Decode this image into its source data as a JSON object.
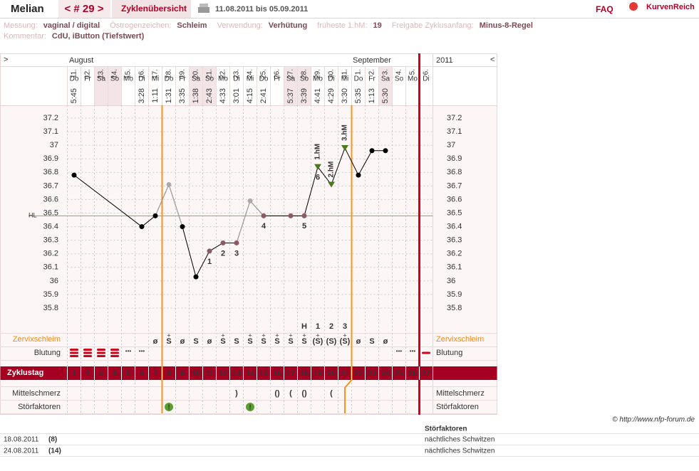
{
  "header": {
    "user": "Melian",
    "cycle": "< # 29 >",
    "tab": "Zyklenübersicht",
    "range": "11.08.2011 bis 05.09.2011",
    "faq": "FAQ",
    "logo": "KurvenReich"
  },
  "info": [
    {
      "label": "Messung:",
      "value": "vaginal / digital"
    },
    {
      "label": "Östrogenzeichen:",
      "value": "Schleim"
    },
    {
      "label": "Verwendung:",
      "value": "Verhütung"
    },
    {
      "label": "früheste 1.hM:",
      "value": "19"
    },
    {
      "label": "Freigabe Zyklusanfang:",
      "value": "Minus-8-Regel"
    }
  ],
  "comment": {
    "label": "Kommentar:",
    "value": "CdU, iButton (Tiefstwert)"
  },
  "calendar": {
    "prev": ">",
    "next": "<",
    "months": [
      "August",
      "September"
    ],
    "year": "2011",
    "days": [
      {
        "date": "11.",
        "weekday": "Do",
        "time": "5:45"
      },
      {
        "date": "12.",
        "weekday": "Fr",
        "time": null
      },
      {
        "date": "13.",
        "weekday": "Sa",
        "time": null
      },
      {
        "date": "14.",
        "weekday": "So",
        "time": null
      },
      {
        "date": "15.",
        "weekday": "Mo",
        "time": null
      },
      {
        "date": "16.",
        "weekday": "Di",
        "time": "3:28"
      },
      {
        "date": "17.",
        "weekday": "Mi",
        "time": "1:11"
      },
      {
        "date": "18.",
        "weekday": "Do",
        "time": "1:31"
      },
      {
        "date": "19.",
        "weekday": "Fr",
        "time": "3:35"
      },
      {
        "date": "20.",
        "weekday": "Sa",
        "time": "1:38"
      },
      {
        "date": "21.",
        "weekday": "So",
        "time": "2:43"
      },
      {
        "date": "22.",
        "weekday": "Mo",
        "time": "4:33"
      },
      {
        "date": "23.",
        "weekday": "Di",
        "time": "3:01"
      },
      {
        "date": "24.",
        "weekday": "Mi",
        "time": "4:15"
      },
      {
        "date": "25.",
        "weekday": "Do",
        "time": "2:41"
      },
      {
        "date": "26.",
        "weekday": "Fr",
        "time": null
      },
      {
        "date": "27.",
        "weekday": "Sa",
        "time": "5:37"
      },
      {
        "date": "28.",
        "weekday": "So",
        "time": "3:39"
      },
      {
        "date": "29.",
        "weekday": "Mo",
        "time": "4:41"
      },
      {
        "date": "30.",
        "weekday": "Di",
        "time": "4:29"
      },
      {
        "date": "31.",
        "weekday": "Mi",
        "time": "3:30"
      },
      {
        "date": "1.",
        "weekday": "Do",
        "time": "5:35"
      },
      {
        "date": "2.",
        "weekday": "Fr",
        "time": "1:13"
      },
      {
        "date": "3.",
        "weekday": "Sa",
        "time": "5:30"
      },
      {
        "date": "4.",
        "weekday": "So",
        "time": null
      },
      {
        "date": "5.",
        "weekday": "Mo",
        "time": null
      },
      {
        "date": "6.",
        "weekday": "Di",
        "time": null
      }
    ]
  },
  "chart_data": {
    "type": "line",
    "x": [
      1,
      6,
      7,
      8,
      9,
      10,
      11,
      12,
      13,
      14,
      15,
      17,
      18,
      19,
      20,
      21,
      22,
      23,
      24
    ],
    "values": [
      36.78,
      36.4,
      36.48,
      36.71,
      36.4,
      36.03,
      36.22,
      36.28,
      36.28,
      36.59,
      36.48,
      36.48,
      36.48,
      36.84,
      36.71,
      36.98,
      36.78,
      36.96,
      36.96
    ],
    "colors": [
      "#000",
      "#000",
      "#000",
      "#aaa",
      "#000",
      "#000",
      "#8b5a64",
      "#8b5a64",
      "#8b5a64",
      "#aaa",
      "#8b5a64",
      "#8b5a64",
      "#8b5a64",
      "#000",
      "#000",
      "#000",
      "#000",
      "#000",
      "#000"
    ],
    "point_labels": [
      null,
      null,
      null,
      null,
      null,
      null,
      "1",
      "2",
      "3",
      null,
      "4",
      null,
      "5",
      "6",
      null,
      null,
      null,
      null,
      null
    ],
    "hm_labels": [
      null,
      null,
      null,
      null,
      null,
      null,
      null,
      null,
      null,
      null,
      null,
      null,
      null,
      "1.hM",
      "2.hM",
      "3.hM",
      null,
      null,
      null
    ],
    "hm_color": "#4b7a1e",
    "line_color": "#000",
    "hl": 36.48,
    "hl_label": "HL",
    "hl_color": "#7cb342",
    "xlim": [
      0.5,
      27.5
    ],
    "ylim": [
      35.8,
      37.2
    ],
    "yticks": [
      35.8,
      35.9,
      36,
      36.1,
      36.2,
      36.3,
      36.4,
      36.5,
      36.6,
      36.7,
      36.8,
      36.9,
      37,
      37.1,
      37.2
    ],
    "grid": true
  },
  "rows": {
    "cervix_label": "Zervixschleim",
    "bleeding_label": "Blutung",
    "cycleday_label": "Zyklustag",
    "pain_label": "Mittelschmerz",
    "disturb_label": "Störfaktoren",
    "cervix_marks": [
      null,
      null,
      null,
      null,
      null,
      null,
      null,
      null,
      null,
      null,
      null,
      null,
      null,
      null,
      null,
      null,
      null,
      "H",
      "1",
      "2",
      "3",
      null,
      null,
      null,
      null,
      null,
      null
    ],
    "cervix": [
      null,
      null,
      null,
      null,
      null,
      null,
      {
        "sym": "ø"
      },
      {
        "top": "+",
        "sym": "S"
      },
      {
        "sym": "ø"
      },
      {
        "sym": "S"
      },
      {
        "sym": "ø"
      },
      {
        "top": "+",
        "sym": "S"
      },
      {
        "sym": "S"
      },
      {
        "top": "+",
        "sym": "S"
      },
      {
        "top": "+",
        "sym": "S"
      },
      {
        "top": "+",
        "sym": "S"
      },
      {
        "top": "+",
        "sym": "S"
      },
      {
        "top": "+",
        "sym": "S"
      },
      {
        "top": "+",
        "sym": "(S)"
      },
      {
        "sym": "(S)"
      },
      {
        "top": "+",
        "sym": "(S)"
      },
      {
        "sym": "ø"
      },
      {
        "sym": "S"
      },
      {
        "sym": "ø"
      },
      null,
      null,
      null
    ],
    "bleeding": [
      3,
      3,
      3,
      3,
      "•••",
      "•••",
      null,
      null,
      null,
      null,
      null,
      null,
      null,
      null,
      null,
      null,
      null,
      null,
      null,
      null,
      null,
      null,
      null,
      null,
      "•••",
      "•••",
      1
    ],
    "cycleday": [
      1,
      2,
      3,
      4,
      5,
      6,
      7,
      8,
      9,
      10,
      11,
      12,
      13,
      14,
      15,
      16,
      17,
      18,
      19,
      20,
      21,
      22,
      23,
      24,
      25,
      26,
      27
    ],
    "pain": [
      null,
      null,
      null,
      null,
      null,
      null,
      null,
      null,
      null,
      null,
      null,
      null,
      ")",
      null,
      null,
      "()",
      "(",
      "()",
      null,
      "(",
      null,
      null,
      null,
      null,
      null,
      null,
      null
    ],
    "disturb": [
      null,
      null,
      null,
      null,
      null,
      null,
      null,
      "!",
      null,
      null,
      null,
      null,
      null,
      "!",
      null,
      null,
      null,
      null,
      null,
      null,
      null,
      null,
      null,
      null,
      null,
      null,
      null
    ]
  },
  "footer": {
    "copyright": "© http://www.nfp-forum.de",
    "title": "Störfaktoren",
    "rows": [
      [
        "18.08.2011",
        "(8)",
        "nächtliches Schwitzen"
      ],
      [
        "24.08.2011",
        "(14)",
        "nächtliches Schwitzen"
      ]
    ]
  }
}
